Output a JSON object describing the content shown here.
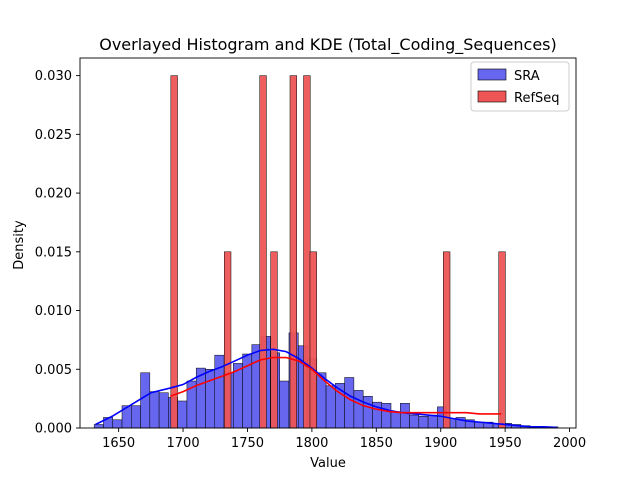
{
  "chart_data": {
    "type": "histogram",
    "title": "Overlayed Histogram and KDE (Total_Coding_Sequences)",
    "xlabel": "Value",
    "ylabel": "Density",
    "xlim": [
      1620,
      2005
    ],
    "ylim": [
      0,
      0.0315
    ],
    "xticks": [
      1650,
      1700,
      1750,
      1800,
      1850,
      1900,
      1950,
      2000
    ],
    "yticks": [
      0.0,
      0.005,
      0.01,
      0.015,
      0.02,
      0.025,
      0.03
    ],
    "ytick_labels": [
      "0.000",
      "0.005",
      "0.010",
      "0.015",
      "0.020",
      "0.025",
      "0.030"
    ],
    "legend_position": "top-right",
    "grid": false,
    "series": [
      {
        "name": "SRA",
        "color": "#0000ff",
        "bar_fill": "#6666ee",
        "bin_start": 1631,
        "bin_width": 7.2,
        "values": [
          0.0003,
          0.0009,
          0.0007,
          0.0019,
          0.0019,
          0.0047,
          0.0031,
          0.003,
          0.0026,
          0.0023,
          0.004,
          0.0051,
          0.005,
          0.0062,
          0.0047,
          0.0055,
          0.0063,
          0.0071,
          0.0078,
          0.0064,
          0.004,
          0.0081,
          0.007,
          0.0059,
          0.0047,
          0.0036,
          0.0038,
          0.0043,
          0.0032,
          0.0027,
          0.0022,
          0.0021,
          0.0014,
          0.0021,
          0.0011,
          0.001,
          0.0011,
          0.0018,
          0.0008,
          0.0009,
          0.0007,
          0.0005,
          0.0005,
          0.0004,
          0.0004,
          0.0003,
          0.0002,
          0.0001,
          0.0001,
          0.0001
        ]
      },
      {
        "name": "RefSeq",
        "color": "#ff0000",
        "bar_fill": "#ee5555",
        "bin_width": 5.2,
        "bars": [
          {
            "x": 1690.5,
            "value": 0.03
          },
          {
            "x": 1732.0,
            "value": 0.015
          },
          {
            "x": 1759.5,
            "value": 0.03
          },
          {
            "x": 1768.0,
            "value": 0.015
          },
          {
            "x": 1783.0,
            "value": 0.03
          },
          {
            "x": 1793.5,
            "value": 0.03
          },
          {
            "x": 1798.5,
            "value": 0.015
          },
          {
            "x": 1902.0,
            "value": 0.015
          },
          {
            "x": 1945.0,
            "value": 0.015
          }
        ]
      }
    ],
    "kde": [
      {
        "name": "SRA",
        "color": "#0000ff",
        "x": [
          1632,
          1645,
          1660,
          1675,
          1690,
          1700,
          1710,
          1720,
          1730,
          1740,
          1750,
          1760,
          1770,
          1780,
          1790,
          1800,
          1810,
          1820,
          1830,
          1840,
          1850,
          1860,
          1870,
          1880,
          1890,
          1900,
          1910,
          1920,
          1930,
          1940,
          1950,
          1960,
          1970,
          1980,
          1990
        ],
        "y": [
          0.0003,
          0.001,
          0.002,
          0.003,
          0.0034,
          0.0037,
          0.0043,
          0.0048,
          0.0052,
          0.0057,
          0.0062,
          0.0066,
          0.0067,
          0.0065,
          0.0059,
          0.0051,
          0.0042,
          0.0034,
          0.0027,
          0.0022,
          0.0018,
          0.0015,
          0.0013,
          0.0012,
          0.0011,
          0.001,
          0.0008,
          0.0006,
          0.0005,
          0.0004,
          0.0003,
          0.0002,
          0.0001,
          0.0001,
          5e-05
        ]
      },
      {
        "name": "RefSeq",
        "color": "#ff0000",
        "x": [
          1690,
          1700,
          1710,
          1720,
          1730,
          1740,
          1750,
          1760,
          1770,
          1780,
          1790,
          1800,
          1810,
          1820,
          1830,
          1840,
          1850,
          1860,
          1870,
          1880,
          1890,
          1900,
          1910,
          1920,
          1930,
          1940,
          1947
        ],
        "y": [
          0.0027,
          0.0031,
          0.0036,
          0.004,
          0.0044,
          0.0048,
          0.0053,
          0.0058,
          0.006,
          0.006,
          0.0057,
          0.005,
          0.004,
          0.0031,
          0.0024,
          0.0019,
          0.0016,
          0.0014,
          0.0013,
          0.0013,
          0.0013,
          0.0013,
          0.0013,
          0.0013,
          0.0012,
          0.0012,
          0.0012
        ]
      }
    ]
  }
}
